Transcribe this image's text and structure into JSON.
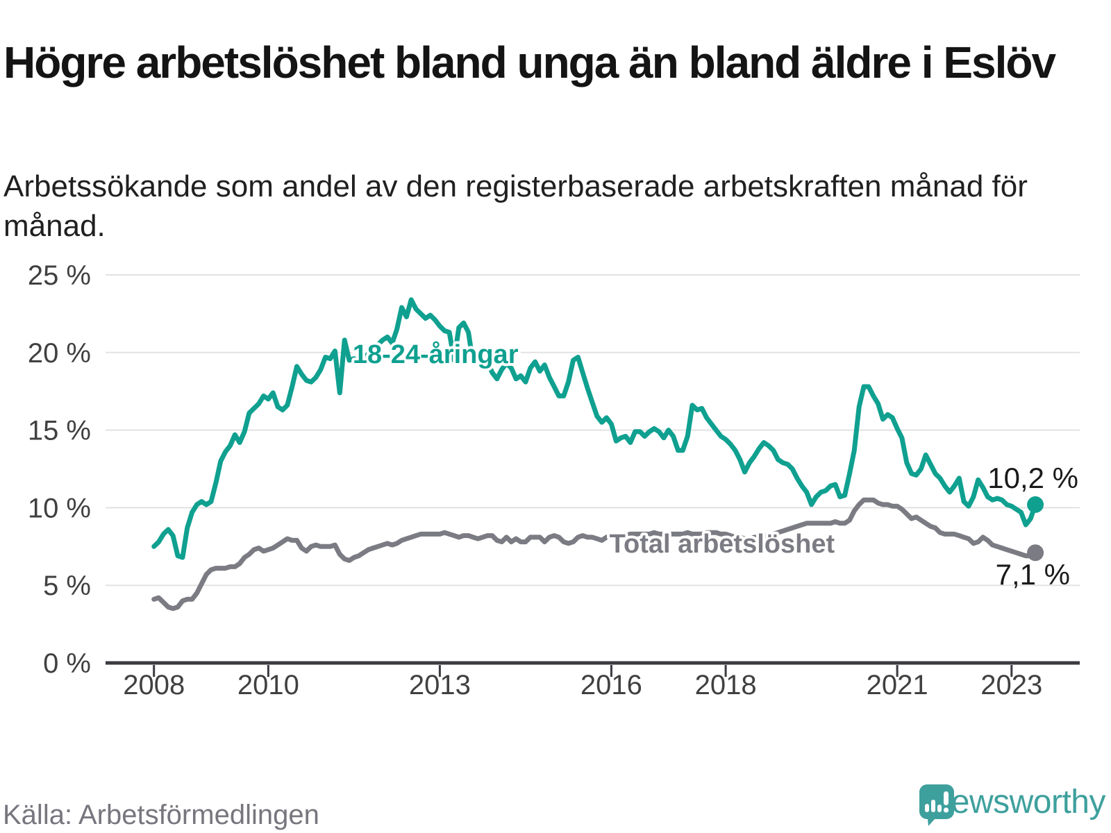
{
  "header": {
    "title": "Högre arbetslöshet bland unga än bland äldre i Eslöv",
    "subtitle": "Arbetssökande som andel av den registerbaserade arbetskraften månad för månad."
  },
  "footer": {
    "source": "Källa: Arbetsförmedlingen",
    "logo_text": "Newsworthy",
    "logo_icon": "bar-chart-speech-bubble",
    "logo_color": "#3ea09d"
  },
  "colors": {
    "youth_line": "#0fa090",
    "total_line": "#7b7b83",
    "grid": "#e2e2e2",
    "axis": "#3a3a40",
    "axis_text": "#404040",
    "end_label_text": "#1a1a1a"
  },
  "chart_data": {
    "type": "line",
    "title": "Högre arbetslöshet bland unga än bland äldre i Eslöv",
    "xlabel": "",
    "ylabel": "Arbetssökande som andel av den registerbaserade arbetskraften",
    "x_start": "2008-01",
    "x_end": "2023-06",
    "x_unit": "month",
    "x_ticks": [
      2008,
      2010,
      2013,
      2016,
      2018,
      2021,
      2023
    ],
    "y_ticks": [
      0,
      5,
      10,
      15,
      20,
      25
    ],
    "y_tick_suffix": " %",
    "ylim": [
      0,
      26.5
    ],
    "grid": "horizontal",
    "legend_position": "inline-labels",
    "series": [
      {
        "name": "18-24-åringar",
        "color": "#0fa090",
        "end_label": "10,2 %",
        "end_value": 10.2,
        "label_anchor": {
          "month": 41.7,
          "value": 19.9
        },
        "values": [
          7.5,
          7.8,
          8.3,
          8.6,
          8.2,
          6.9,
          6.8,
          8.7,
          9.7,
          10.2,
          10.4,
          10.2,
          10.4,
          11.6,
          13.0,
          13.6,
          14.0,
          14.7,
          14.2,
          14.9,
          16.1,
          16.4,
          16.7,
          17.2,
          17.0,
          17.4,
          16.5,
          16.3,
          16.6,
          17.8,
          19.1,
          18.6,
          18.2,
          18.1,
          18.4,
          18.9,
          19.7,
          19.6,
          20.1,
          17.4,
          20.8,
          19.5,
          19.6,
          19.3,
          19.6,
          19.9,
          20.2,
          20.5,
          20.8,
          21.0,
          20.6,
          21.5,
          22.9,
          22.3,
          23.4,
          22.8,
          22.5,
          22.2,
          22.4,
          22.1,
          21.7,
          21.4,
          21.3,
          19.5,
          21.6,
          21.9,
          21.3,
          19.3,
          19.5,
          19.0,
          19.4,
          18.7,
          18.3,
          18.9,
          19.3,
          19.0,
          18.3,
          18.5,
          18.1,
          19.0,
          19.4,
          18.8,
          19.2,
          18.4,
          17.8,
          17.2,
          17.2,
          18.1,
          19.5,
          19.7,
          18.7,
          17.7,
          16.8,
          15.9,
          15.5,
          15.8,
          15.4,
          14.3,
          14.5,
          14.6,
          14.2,
          14.9,
          14.9,
          14.6,
          14.9,
          15.1,
          14.9,
          14.5,
          15.0,
          14.6,
          13.7,
          13.7,
          14.6,
          16.6,
          16.3,
          16.4,
          15.8,
          15.4,
          15.0,
          14.6,
          14.4,
          14.1,
          13.7,
          13.1,
          12.3,
          12.9,
          13.3,
          13.8,
          14.2,
          14.0,
          13.7,
          13.1,
          12.9,
          12.8,
          12.5,
          11.9,
          11.4,
          11.0,
          10.2,
          10.7,
          11.0,
          11.1,
          11.4,
          11.5,
          10.7,
          10.8,
          12.2,
          13.7,
          16.5,
          17.8,
          17.8,
          17.2,
          16.7,
          15.7,
          16.0,
          15.8,
          15.1,
          14.5,
          12.9,
          12.2,
          12.1,
          12.5,
          13.4,
          12.8,
          12.2,
          11.9,
          11.4,
          11.0,
          11.4,
          11.9,
          10.4,
          10.1,
          10.7,
          11.8,
          11.3,
          10.7,
          10.5,
          10.6,
          10.5,
          10.2,
          10.1,
          9.9,
          9.7,
          8.9,
          9.3,
          10.2
        ]
      },
      {
        "name": "Total arbetslöshet",
        "color": "#7b7b83",
        "end_label": "7,1 %",
        "end_value": 7.1,
        "label_anchor": {
          "month": 95.6,
          "value": 7.7
        },
        "values": [
          4.1,
          4.2,
          3.9,
          3.6,
          3.5,
          3.6,
          4.0,
          4.1,
          4.1,
          4.5,
          5.1,
          5.7,
          6.0,
          6.1,
          6.1,
          6.1,
          6.2,
          6.2,
          6.4,
          6.8,
          7.0,
          7.3,
          7.4,
          7.2,
          7.3,
          7.4,
          7.6,
          7.8,
          8.0,
          7.9,
          7.9,
          7.4,
          7.2,
          7.5,
          7.6,
          7.5,
          7.5,
          7.5,
          7.6,
          7.0,
          6.7,
          6.6,
          6.8,
          6.9,
          7.1,
          7.3,
          7.4,
          7.5,
          7.6,
          7.7,
          7.6,
          7.7,
          7.9,
          8.0,
          8.1,
          8.2,
          8.3,
          8.3,
          8.3,
          8.3,
          8.3,
          8.4,
          8.3,
          8.2,
          8.1,
          8.2,
          8.2,
          8.1,
          8.0,
          8.1,
          8.2,
          8.2,
          7.9,
          7.8,
          8.1,
          7.8,
          8.0,
          7.8,
          7.8,
          8.1,
          8.1,
          8.1,
          7.8,
          8.1,
          8.2,
          8.1,
          7.8,
          7.7,
          7.8,
          8.1,
          8.2,
          8.1,
          8.1,
          8.0,
          7.9,
          8.1,
          8.2,
          8.1,
          8.2,
          8.2,
          8.3,
          8.3,
          8.3,
          8.3,
          8.3,
          8.4,
          8.3,
          8.3,
          8.3,
          8.3,
          8.3,
          8.3,
          8.4,
          8.3,
          8.3,
          8.3,
          8.4,
          8.4,
          8.4,
          8.3,
          8.3,
          8.2,
          8.1,
          8.1,
          8.0,
          8.0,
          8.1,
          8.1,
          8.2,
          8.2,
          8.3,
          8.4,
          8.5,
          8.6,
          8.7,
          8.8,
          8.9,
          9.0,
          9.0,
          9.0,
          9.0,
          9.0,
          9.0,
          9.1,
          9.0,
          9.0,
          9.2,
          9.8,
          10.2,
          10.5,
          10.5,
          10.5,
          10.3,
          10.2,
          10.2,
          10.1,
          10.1,
          9.9,
          9.6,
          9.3,
          9.4,
          9.2,
          9.0,
          8.8,
          8.7,
          8.4,
          8.3,
          8.3,
          8.3,
          8.2,
          8.1,
          8.0,
          7.7,
          7.8,
          8.1,
          7.9,
          7.6,
          7.5,
          7.4,
          7.3,
          7.2,
          7.1,
          7.0,
          6.9,
          6.9,
          7.1
        ]
      }
    ]
  }
}
